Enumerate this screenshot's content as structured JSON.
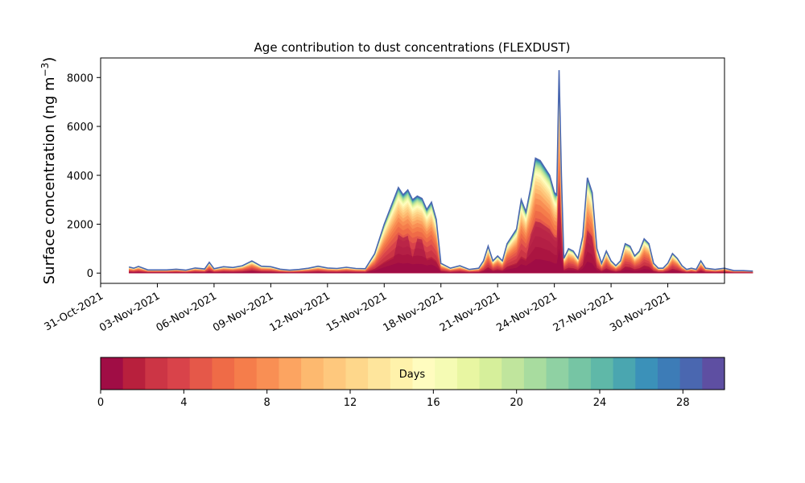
{
  "chart_data": {
    "type": "area",
    "title": "Age contribution to dust concentrations (FLEXDUST)",
    "ylabel_main": "Surface concentration (ng m",
    "ylabel_sup": "−3",
    "ylabel_close": ")",
    "ylim": [
      -420,
      8800
    ],
    "yticks": [
      0,
      2000,
      4000,
      6000,
      8000
    ],
    "xlim": [
      "2021-10-31",
      "2021-12-03"
    ],
    "xticks": [
      "31-Oct-2021",
      "03-Nov-2021",
      "06-Nov-2021",
      "09-Nov-2021",
      "12-Nov-2021",
      "15-Nov-2021",
      "18-Nov-2021",
      "21-Nov-2021",
      "24-Nov-2021",
      "27-Nov-2021",
      "30-Nov-2021"
    ],
    "grid": false,
    "total_series": {
      "name": "total",
      "points": [
        [
          "2021-11-01T12:00",
          250
        ],
        [
          "2021-11-01T18:00",
          200
        ],
        [
          "2021-11-02T00:00",
          270
        ],
        [
          "2021-11-02T12:00",
          130
        ],
        [
          "2021-11-03T12:00",
          130
        ],
        [
          "2021-11-04T00:00",
          160
        ],
        [
          "2021-11-04T12:00",
          120
        ],
        [
          "2021-11-05T00:00",
          210
        ],
        [
          "2021-11-05T12:00",
          170
        ],
        [
          "2021-11-05T18:00",
          440
        ],
        [
          "2021-11-06T00:00",
          180
        ],
        [
          "2021-11-06T12:00",
          260
        ],
        [
          "2021-11-07T00:00",
          230
        ],
        [
          "2021-11-07T12:00",
          300
        ],
        [
          "2021-11-08T00:00",
          500
        ],
        [
          "2021-11-08T12:00",
          280
        ],
        [
          "2021-11-09T00:00",
          260
        ],
        [
          "2021-11-09T12:00",
          160
        ],
        [
          "2021-11-10T00:00",
          120
        ],
        [
          "2021-11-10T12:00",
          150
        ],
        [
          "2021-11-11T00:00",
          200
        ],
        [
          "2021-11-11T12:00",
          280
        ],
        [
          "2021-11-12T00:00",
          210
        ],
        [
          "2021-11-12T12:00",
          190
        ],
        [
          "2021-11-13T00:00",
          240
        ],
        [
          "2021-11-13T12:00",
          190
        ],
        [
          "2021-11-14T00:00",
          180
        ],
        [
          "2021-11-14T12:00",
          800
        ],
        [
          "2021-11-15T00:00",
          2000
        ],
        [
          "2021-11-15T12:00",
          3000
        ],
        [
          "2021-11-15T18:00",
          3500
        ],
        [
          "2021-11-16T00:00",
          3200
        ],
        [
          "2021-11-16T06:00",
          3400
        ],
        [
          "2021-11-16T12:00",
          3000
        ],
        [
          "2021-11-16T18:00",
          3150
        ],
        [
          "2021-11-17T00:00",
          3050
        ],
        [
          "2021-11-17T06:00",
          2600
        ],
        [
          "2021-11-17T12:00",
          2900
        ],
        [
          "2021-11-17T18:00",
          2200
        ],
        [
          "2021-11-18T00:00",
          400
        ],
        [
          "2021-11-18T12:00",
          200
        ],
        [
          "2021-11-19T00:00",
          300
        ],
        [
          "2021-11-19T12:00",
          150
        ],
        [
          "2021-11-20T00:00",
          200
        ],
        [
          "2021-11-20T06:00",
          500
        ],
        [
          "2021-11-20T12:00",
          1100
        ],
        [
          "2021-11-20T18:00",
          500
        ],
        [
          "2021-11-21T00:00",
          700
        ],
        [
          "2021-11-21T06:00",
          500
        ],
        [
          "2021-11-21T12:00",
          1200
        ],
        [
          "2021-11-21T18:00",
          1500
        ],
        [
          "2021-11-22T00:00",
          1800
        ],
        [
          "2021-11-22T06:00",
          3000
        ],
        [
          "2021-11-22T12:00",
          2500
        ],
        [
          "2021-11-22T18:00",
          3500
        ],
        [
          "2021-11-23T00:00",
          4700
        ],
        [
          "2021-11-23T06:00",
          4600
        ],
        [
          "2021-11-23T12:00",
          4300
        ],
        [
          "2021-11-23T18:00",
          4000
        ],
        [
          "2021-11-24T00:00",
          3300
        ],
        [
          "2021-11-24T03:00",
          3200
        ],
        [
          "2021-11-24T06:00",
          8300
        ],
        [
          "2021-11-24T09:00",
          4000
        ],
        [
          "2021-11-24T12:00",
          600
        ],
        [
          "2021-11-24T18:00",
          1000
        ],
        [
          "2021-11-25T00:00",
          900
        ],
        [
          "2021-11-25T06:00",
          600
        ],
        [
          "2021-11-25T12:00",
          1500
        ],
        [
          "2021-11-25T18:00",
          3900
        ],
        [
          "2021-11-26T00:00",
          3300
        ],
        [
          "2021-11-26T06:00",
          1000
        ],
        [
          "2021-11-26T12:00",
          400
        ],
        [
          "2021-11-26T18:00",
          900
        ],
        [
          "2021-11-27T00:00",
          500
        ],
        [
          "2021-11-27T06:00",
          300
        ],
        [
          "2021-11-27T12:00",
          500
        ],
        [
          "2021-11-27T18:00",
          1200
        ],
        [
          "2021-11-28T00:00",
          1100
        ],
        [
          "2021-11-28T06:00",
          700
        ],
        [
          "2021-11-28T12:00",
          900
        ],
        [
          "2021-11-28T18:00",
          1400
        ],
        [
          "2021-11-29T00:00",
          1200
        ],
        [
          "2021-11-29T06:00",
          400
        ],
        [
          "2021-11-29T12:00",
          200
        ],
        [
          "2021-11-29T18:00",
          200
        ],
        [
          "2021-11-30T00:00",
          400
        ],
        [
          "2021-11-30T06:00",
          800
        ],
        [
          "2021-11-30T12:00",
          600
        ],
        [
          "2021-11-30T18:00",
          300
        ],
        [
          "2021-12-01T00:00",
          150
        ],
        [
          "2021-12-01T06:00",
          200
        ],
        [
          "2021-12-01T12:00",
          150
        ],
        [
          "2021-12-01T18:00",
          500
        ],
        [
          "2021-12-02T00:00",
          200
        ],
        [
          "2021-12-02T12:00",
          150
        ],
        [
          "2021-12-03T00:00",
          200
        ],
        [
          "2021-12-03T12:00",
          100
        ],
        [
          "2021-12-04T00:00",
          100
        ],
        [
          "2021-12-04T12:00",
          80
        ]
      ]
    },
    "colorbar": {
      "label": "Days",
      "range": [
        0,
        30
      ],
      "ticks": [
        "0",
        "4",
        "8",
        "12",
        "16",
        "20",
        "24",
        "28"
      ],
      "colors": [
        "#a00d45",
        "#b8203d",
        "#cc3545",
        "#d9434a",
        "#e55849",
        "#ef6b47",
        "#f57d4b",
        "#f98f54",
        "#fca461",
        "#fdb96f",
        "#fec87d",
        "#fed78b",
        "#fee59c",
        "#fff2ab",
        "#fffcbf",
        "#f5fbb4",
        "#e8f6a2",
        "#d6ef9b",
        "#c0e59d",
        "#a8dc9f",
        "#8fd1a3",
        "#76c5a4",
        "#5fb8a8",
        "#4aa6b0",
        "#3b91b9",
        "#3d7cb7",
        "#4a67b0",
        "#5e4fa2"
      ]
    }
  }
}
